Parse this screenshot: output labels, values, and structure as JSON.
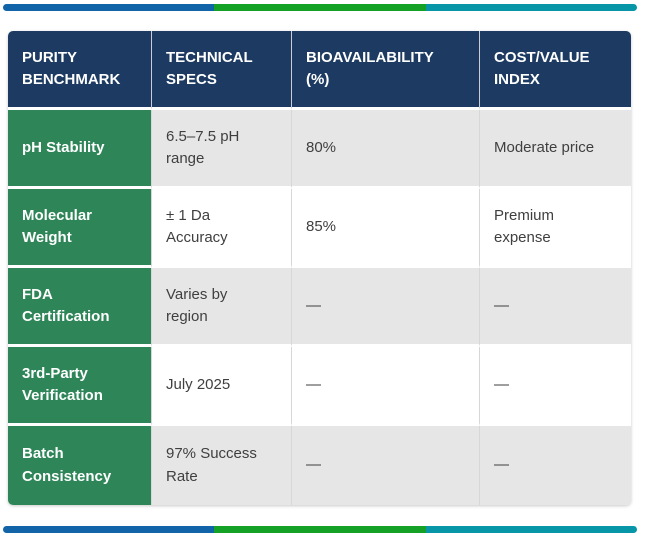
{
  "accent_bars": {
    "blue": "#1264a8",
    "green": "#15a125",
    "teal": "#0796a8"
  },
  "style": {
    "header_bg": "#1d3b62",
    "header_text": "#ffffff",
    "benchmark_column_bg": "#2e8658",
    "alt_row_bg": "#e6e6e6",
    "body_text": "#3f3f3f"
  },
  "chart_data": {
    "type": "table",
    "title": "",
    "columns": [
      "PURITY BENCHMARK",
      "TECHNICAL SPECS",
      "BIOAVAILABILITY (%)",
      "COST/VALUE INDEX"
    ],
    "rows": [
      [
        "pH Stability",
        "6.5–7.5 pH range",
        "80%",
        "Moderate price"
      ],
      [
        "Molecular Weight",
        "± 1 Da Accuracy",
        "85%",
        "Premium expense"
      ],
      [
        "FDA Certification",
        "Varies by region",
        "—",
        "—"
      ],
      [
        "3rd-Party Verification",
        "July 2025",
        "—",
        "—"
      ],
      [
        "Batch Consistency",
        "97% Success Rate",
        "—",
        "—"
      ]
    ]
  }
}
